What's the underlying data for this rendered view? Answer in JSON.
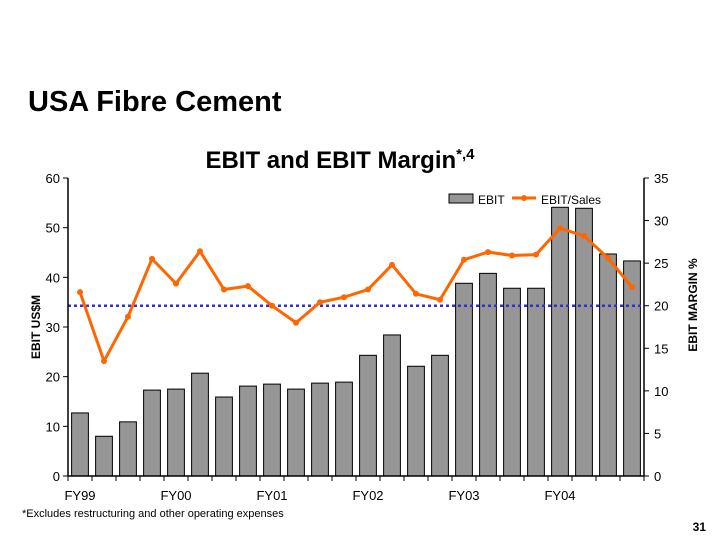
{
  "slide": {
    "title": "USA Fibre Cement",
    "footnote": "*Excludes restructuring and other operating expenses",
    "page_number": "31"
  },
  "chart_data": {
    "type": "bar+line",
    "title": "EBIT and EBIT Margin",
    "title_superscript": "*,4",
    "ylabel": "EBIT US$M",
    "y2label": "EBIT MARGIN %",
    "ylim": [
      0,
      60
    ],
    "y2lim": [
      0,
      35
    ],
    "yticks": [
      "0",
      "10",
      "20",
      "30",
      "40",
      "50",
      "60"
    ],
    "y2ticks": [
      "0",
      "5",
      "10",
      "15",
      "20",
      "25",
      "30",
      "35"
    ],
    "xtick_labels": [
      {
        "label": "FY99",
        "index": 0
      },
      {
        "label": "FY00",
        "index": 4
      },
      {
        "label": "FY01",
        "index": 8
      },
      {
        "label": "FY02",
        "index": 12
      },
      {
        "label": "FY03",
        "index": 16
      },
      {
        "label": "FY04",
        "index": 20
      }
    ],
    "legend": {
      "placement": "top-right",
      "entries": [
        "EBIT",
        "EBIT/Sales"
      ]
    },
    "series": [
      {
        "name": "EBIT",
        "type": "bar",
        "axis": "left",
        "color": "#969696",
        "values": [
          12.7,
          8.0,
          10.9,
          17.3,
          17.5,
          20.7,
          15.9,
          18.1,
          18.5,
          17.5,
          18.7,
          18.9,
          24.3,
          28.4,
          22.1,
          24.3,
          38.8,
          40.8,
          37.8,
          37.8,
          54.1,
          53.9,
          44.7,
          43.3
        ]
      },
      {
        "name": "EBIT/Sales",
        "type": "line",
        "axis": "right",
        "color": "#ff6600",
        "values": [
          21.6,
          13.5,
          18.7,
          25.5,
          22.6,
          26.4,
          21.9,
          22.3,
          20.0,
          18.0,
          20.4,
          21.0,
          21.9,
          24.8,
          21.4,
          20.7,
          25.4,
          26.3,
          25.9,
          26.0,
          29.1,
          28.2,
          25.6,
          22.2
        ]
      }
    ],
    "reference_line": {
      "axis": "right",
      "value": 20,
      "color": "#3333cc",
      "style": "dotted"
    }
  }
}
